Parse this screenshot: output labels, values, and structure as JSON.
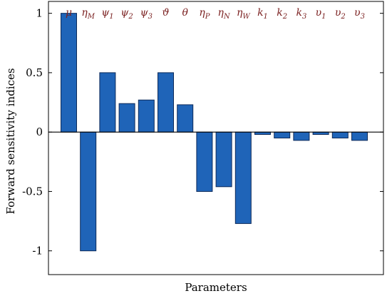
{
  "chart_data": {
    "type": "bar",
    "title": "",
    "xlabel": "Parameters",
    "ylabel": "Forward sensitivity indices",
    "ylim": [
      -1.2,
      1.1
    ],
    "yticks": [
      1,
      0.5,
      0,
      -0.5,
      -1
    ],
    "ytick_labels": [
      "1",
      "0.5",
      "0",
      "-0.5",
      "-1"
    ],
    "grid": false,
    "bar_color": "#1f64b8",
    "bar_edge_color": "#0d2a5a",
    "category_label_color": "#7a1f1f",
    "categories": [
      {
        "base": "μ",
        "sub": ""
      },
      {
        "base": "η",
        "sub": "M"
      },
      {
        "base": "ψ",
        "sub": "1"
      },
      {
        "base": "ψ",
        "sub": "2"
      },
      {
        "base": "ψ",
        "sub": "3"
      },
      {
        "base": "ϑ",
        "sub": ""
      },
      {
        "base": "θ",
        "sub": ""
      },
      {
        "base": "η",
        "sub": "P"
      },
      {
        "base": "η",
        "sub": "N"
      },
      {
        "base": "η",
        "sub": "W"
      },
      {
        "base": "k",
        "sub": "1"
      },
      {
        "base": "k",
        "sub": "2"
      },
      {
        "base": "k",
        "sub": "3"
      },
      {
        "base": "υ",
        "sub": "1"
      },
      {
        "base": "υ",
        "sub": "2"
      },
      {
        "base": "υ",
        "sub": "3"
      }
    ],
    "values": [
      1.0,
      -1.0,
      0.5,
      0.24,
      0.27,
      0.5,
      0.23,
      -0.5,
      -0.46,
      -0.77,
      -0.02,
      -0.05,
      -0.07,
      -0.02,
      -0.05,
      -0.07
    ]
  }
}
